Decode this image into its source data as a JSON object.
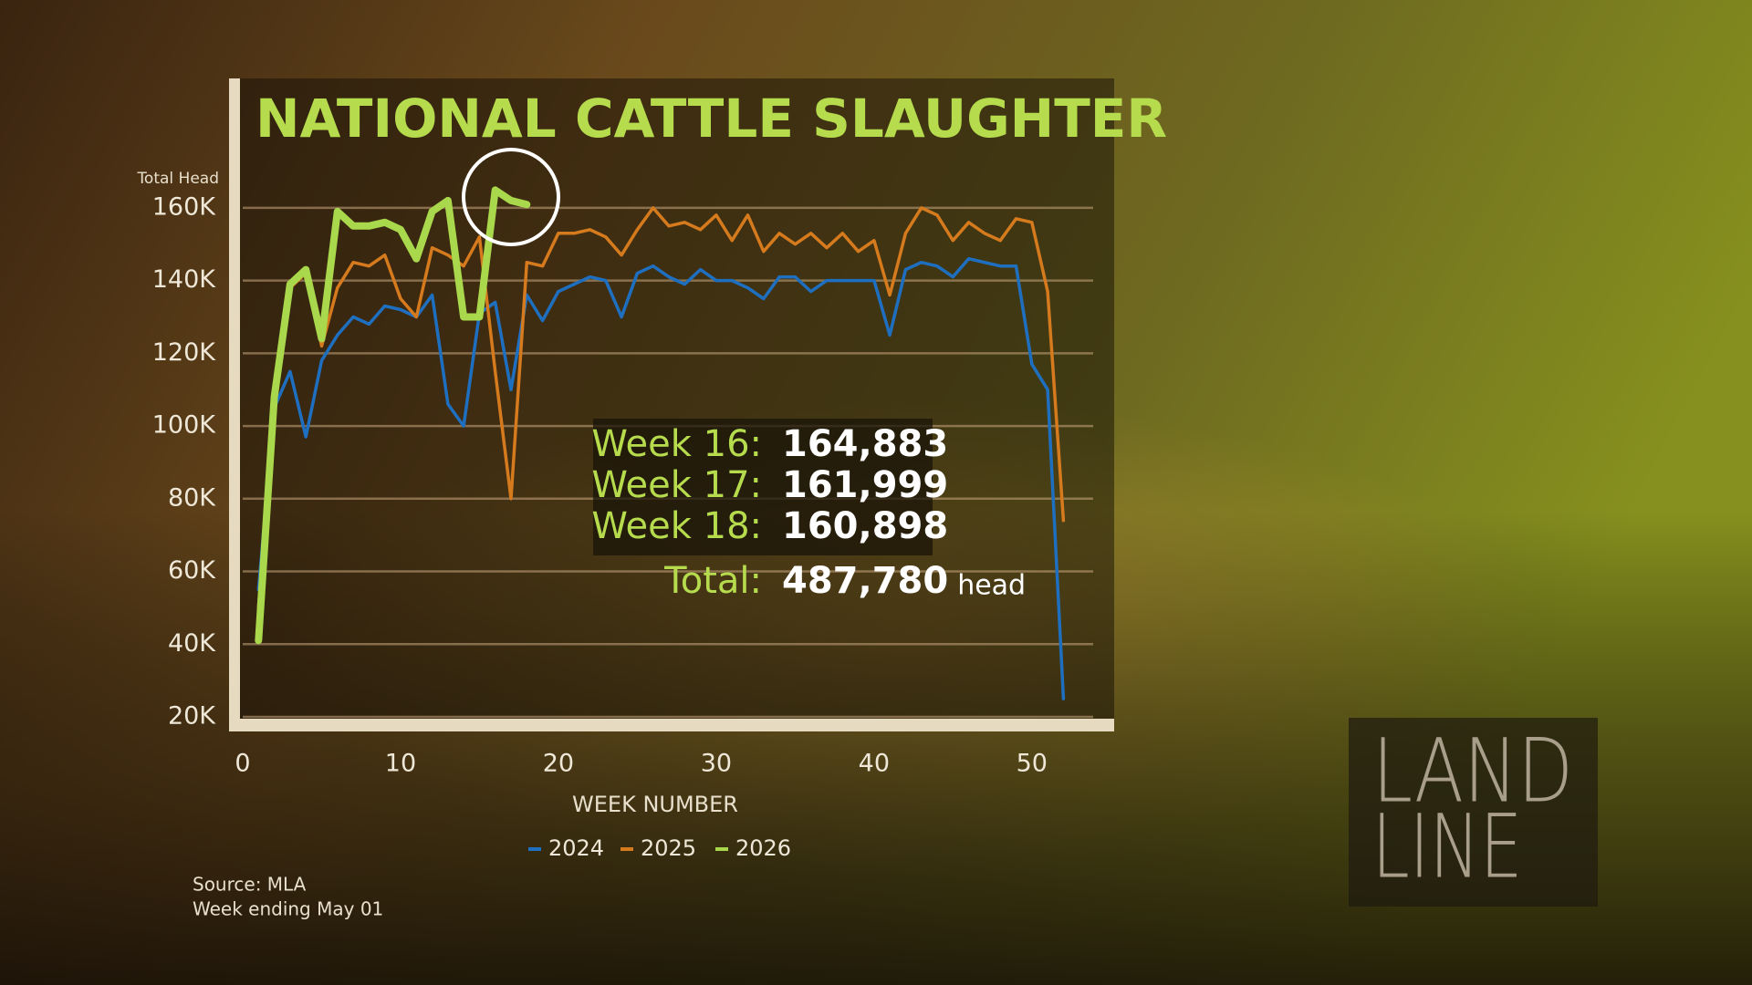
{
  "chart_data": {
    "type": "line",
    "title": "NATIONAL CATTLE SLAUGHTER",
    "y_label": "Total Head",
    "x_label": "WEEK NUMBER",
    "x": [
      1,
      2,
      3,
      4,
      5,
      6,
      7,
      8,
      9,
      10,
      11,
      12,
      13,
      14,
      15,
      16,
      17,
      18,
      19,
      20,
      21,
      22,
      23,
      24,
      25,
      26,
      27,
      28,
      29,
      30,
      31,
      32,
      33,
      34,
      35,
      36,
      37,
      38,
      39,
      40,
      41,
      42,
      43,
      44,
      45,
      46,
      47,
      48,
      49,
      50,
      51,
      52
    ],
    "xlim": [
      0,
      54
    ],
    "xticks": [
      0,
      10,
      20,
      30,
      40,
      50
    ],
    "ylim": [
      20000,
      170000
    ],
    "yticks": [
      {
        "value": 20000,
        "label": "20K"
      },
      {
        "value": 40000,
        "label": "40K"
      },
      {
        "value": 60000,
        "label": "60K"
      },
      {
        "value": 80000,
        "label": "80K"
      },
      {
        "value": 100000,
        "label": "100K"
      },
      {
        "value": 120000,
        "label": "120K"
      },
      {
        "value": 140000,
        "label": "140K"
      },
      {
        "value": 160000,
        "label": "160K"
      }
    ],
    "grid": true,
    "series": [
      {
        "name": "2024",
        "color": "#1f6fc0",
        "width": 3.5,
        "values": [
          55000,
          105000,
          115000,
          97000,
          118000,
          125000,
          130000,
          128000,
          133000,
          132000,
          130000,
          136000,
          106000,
          100000,
          131000,
          134000,
          110000,
          136000,
          129000,
          137000,
          139000,
          141000,
          140000,
          130000,
          142000,
          144000,
          141000,
          139000,
          143000,
          140000,
          140000,
          138000,
          135000,
          141000,
          141000,
          137000,
          140000,
          140000,
          140000,
          140000,
          125000,
          143000,
          145000,
          144000,
          141000,
          146000,
          145000,
          144000,
          144000,
          117000,
          110000,
          25000
        ]
      },
      {
        "name": "2025",
        "color": "#d67a1e",
        "width": 3.5,
        "values": [
          50000,
          110000,
          138000,
          142000,
          122000,
          138000,
          145000,
          144000,
          147000,
          135000,
          130000,
          149000,
          147000,
          144000,
          152000,
          115000,
          80000,
          145000,
          144000,
          153000,
          153000,
          154000,
          152000,
          147000,
          154000,
          160000,
          155000,
          156000,
          154000,
          158000,
          151000,
          158000,
          148000,
          153000,
          150000,
          153000,
          149000,
          153000,
          148000,
          151000,
          136000,
          153000,
          160000,
          158000,
          151000,
          156000,
          153000,
          151000,
          157000,
          156000,
          137000,
          74000
        ]
      },
      {
        "name": "2026",
        "color": "#a9d84c",
        "width": 8,
        "values": [
          41000,
          108000,
          139000,
          143000,
          124000,
          159000,
          155000,
          155000,
          156000,
          154000,
          146000,
          159000,
          162000,
          130000,
          130000,
          164883,
          161999,
          160898,
          null,
          null,
          null,
          null,
          null,
          null,
          null,
          null,
          null,
          null,
          null,
          null,
          null,
          null,
          null,
          null,
          null,
          null,
          null,
          null,
          null,
          null,
          null,
          null,
          null,
          null,
          null,
          null,
          null,
          null,
          null,
          null,
          null,
          null
        ]
      }
    ],
    "callout": {
      "rows": [
        {
          "label": "Week 16:",
          "value": "164,883"
        },
        {
          "label": "Week 17:",
          "value": "161,999"
        },
        {
          "label": "Week 18:",
          "value": "160,898"
        }
      ],
      "total": {
        "label": "Total:",
        "value": "487,780",
        "unit": "head"
      }
    },
    "source": [
      "Source: MLA",
      "Week ending May 01"
    ]
  },
  "logo": {
    "line1": "LAND",
    "line2": "LINE"
  }
}
